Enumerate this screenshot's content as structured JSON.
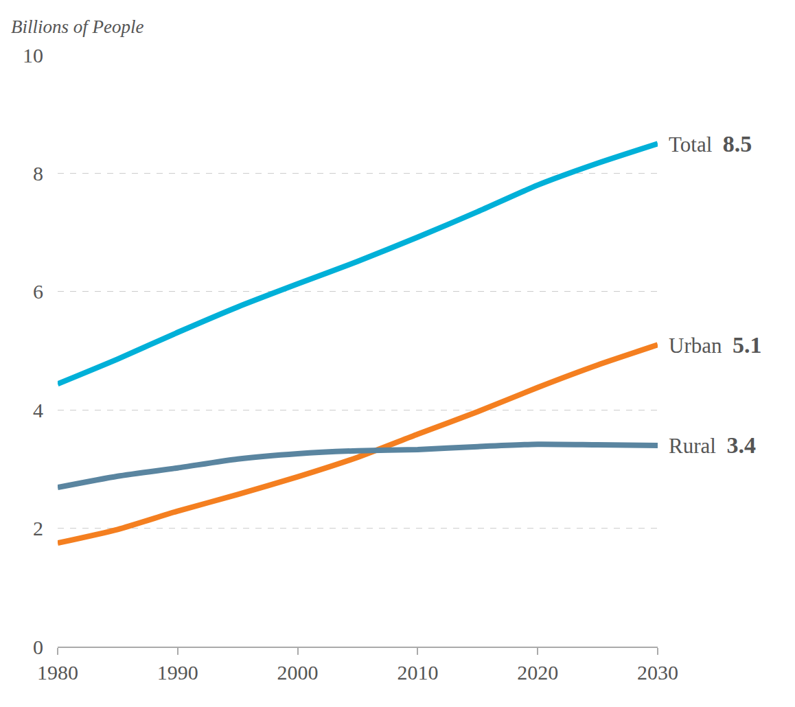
{
  "chart_data": {
    "type": "line",
    "ylabel": "Billions of People",
    "x": [
      1980,
      1985,
      1990,
      1995,
      2000,
      2005,
      2010,
      2015,
      2020,
      2025,
      2030
    ],
    "series": [
      {
        "name": "Total",
        "color": "#00b0d8",
        "values": [
          4.44,
          4.86,
          5.31,
          5.74,
          6.13,
          6.51,
          6.92,
          7.35,
          7.8,
          8.17,
          8.5
        ]
      },
      {
        "name": "Urban",
        "color": "#f47f20",
        "values": [
          1.75,
          1.98,
          2.29,
          2.57,
          2.87,
          3.2,
          3.59,
          3.97,
          4.38,
          4.76,
          5.1
        ]
      },
      {
        "name": "Rural",
        "color": "#5a85a0",
        "values": [
          2.69,
          2.88,
          3.02,
          3.17,
          3.26,
          3.31,
          3.33,
          3.38,
          3.42,
          3.41,
          3.4
        ]
      }
    ],
    "xlim": [
      1980,
      2030
    ],
    "xticks": [
      1980,
      1990,
      2000,
      2010,
      2020,
      2030
    ],
    "ylim": [
      0,
      10
    ],
    "yticks": [
      0,
      2,
      4,
      6,
      8,
      10
    ],
    "grid": true
  }
}
